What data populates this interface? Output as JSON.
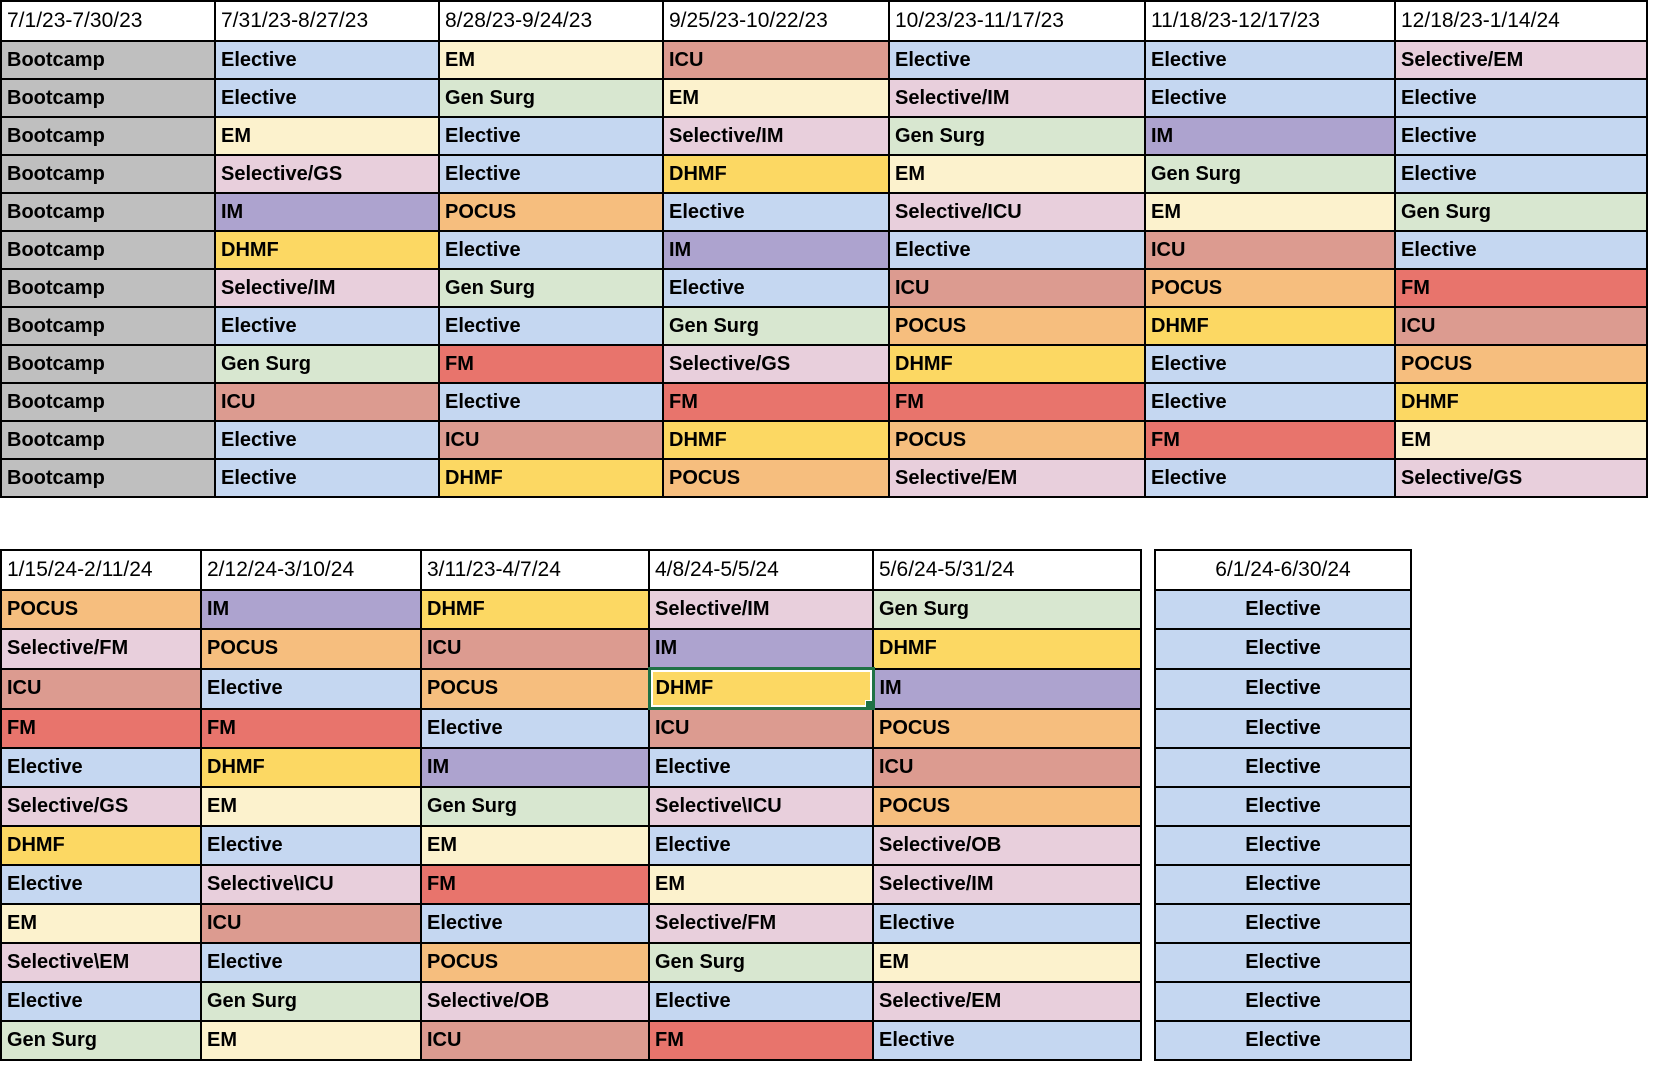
{
  "app": {
    "description": "Residency rotation block schedule spreadsheet, two academic-year tables of 12 resident rows"
  },
  "colors": {
    "Bootcamp": "#BFBFBF",
    "Elective": "#C5D7F1",
    "EM": "#FCF2CD",
    "ICU": "#DC9B90",
    "FM": "#E8746C",
    "Gen Surg": "#D8E7D0",
    "IM": "#ADA3CF",
    "DHMF": "#FCD863",
    "POCUS": "#F6BE7E",
    "Selective": "#E8CFDC",
    "selection_border": "#1F7245",
    "grid_border": "#000000",
    "header_background": "#FFFFFF"
  },
  "tables": [
    {
      "name": "first-half-year",
      "headers": [
        "7/1/23-7/30/23",
        "7/31/23-8/27/23",
        "8/28/23-9/24/23",
        "9/25/23-10/22/23",
        "10/23/23-11/17/23",
        "11/18/23-12/17/23",
        "12/18/23-1/14/24"
      ],
      "rows": [
        [
          "Bootcamp",
          "Elective",
          "EM",
          "ICU",
          "Elective",
          "Elective",
          "Selective/EM"
        ],
        [
          "Bootcamp",
          "Elective",
          "Gen Surg",
          "EM",
          "Selective/IM",
          "Elective",
          "Elective"
        ],
        [
          "Bootcamp",
          "EM",
          "Elective",
          "Selective/IM",
          "Gen Surg",
          "IM",
          "Elective"
        ],
        [
          "Bootcamp",
          "Selective/GS",
          "Elective",
          "DHMF",
          "EM",
          "Gen Surg",
          "Elective"
        ],
        [
          "Bootcamp",
          "IM",
          "POCUS",
          "Elective",
          "Selective/ICU",
          "EM",
          "Gen Surg"
        ],
        [
          "Bootcamp",
          "DHMF",
          "Elective",
          "IM",
          "Elective",
          "ICU",
          "Elective"
        ],
        [
          "Bootcamp",
          "Selective/IM",
          "Gen Surg",
          "Elective",
          "ICU",
          "POCUS",
          "FM"
        ],
        [
          "Bootcamp",
          "Elective",
          "Elective",
          "Gen Surg",
          "POCUS",
          "DHMF",
          "ICU"
        ],
        [
          "Bootcamp",
          "Gen Surg",
          "FM",
          "Selective/GS",
          "DHMF",
          "Elective",
          "POCUS"
        ],
        [
          "Bootcamp",
          "ICU",
          "Elective",
          "FM",
          "FM",
          "Elective",
          "DHMF"
        ],
        [
          "Bootcamp",
          "Elective",
          "ICU",
          "DHMF",
          "POCUS",
          "FM",
          "EM"
        ],
        [
          "Bootcamp",
          "Elective",
          "DHMF",
          "POCUS",
          "Selective/EM",
          "Elective",
          "Selective/GS"
        ]
      ]
    },
    {
      "name": "second-half-year",
      "headers": [
        "1/15/24-2/11/24",
        "2/12/24-3/10/24",
        "3/11/23-4/7/24",
        "4/8/24-5/5/24",
        "5/6/24-5/31/24",
        "6/1/24-6/30/24"
      ],
      "rows": [
        [
          "POCUS",
          "IM",
          "DHMF",
          "Selective/IM",
          "Gen Surg",
          "Elective"
        ],
        [
          "Selective/FM",
          "POCUS",
          "ICU",
          "IM",
          "DHMF",
          "Elective"
        ],
        [
          "ICU",
          "Elective",
          "POCUS",
          "DHMF",
          "IM",
          "Elective"
        ],
        [
          "FM",
          "FM",
          "Elective",
          "ICU",
          "POCUS",
          "Elective"
        ],
        [
          "Elective",
          "DHMF",
          "IM",
          "Elective",
          "ICU",
          "Elective"
        ],
        [
          "Selective/GS",
          "EM",
          "Gen Surg",
          "Selective\\ICU",
          "POCUS",
          "Elective"
        ],
        [
          "DHMF",
          "Elective",
          "EM",
          "Elective",
          "Selective/OB",
          "Elective"
        ],
        [
          "Elective",
          "Selective\\ICU",
          "FM",
          "EM",
          "Selective/IM",
          "Elective"
        ],
        [
          "EM",
          "ICU",
          "Elective",
          "Selective/FM",
          "Elective",
          "Elective"
        ],
        [
          "Selective\\EM",
          "Elective",
          "POCUS",
          "Gen Surg",
          "EM",
          "Elective"
        ],
        [
          "Elective",
          "Gen Surg",
          "Selective/OB",
          "Elective",
          "Selective/EM",
          "Elective"
        ],
        [
          "Gen Surg",
          "EM",
          "ICU",
          "FM",
          "Elective",
          "Elective"
        ]
      ],
      "selected_cell": {
        "row_index": 2,
        "col_index": 3,
        "value": "DHMF"
      }
    }
  ]
}
